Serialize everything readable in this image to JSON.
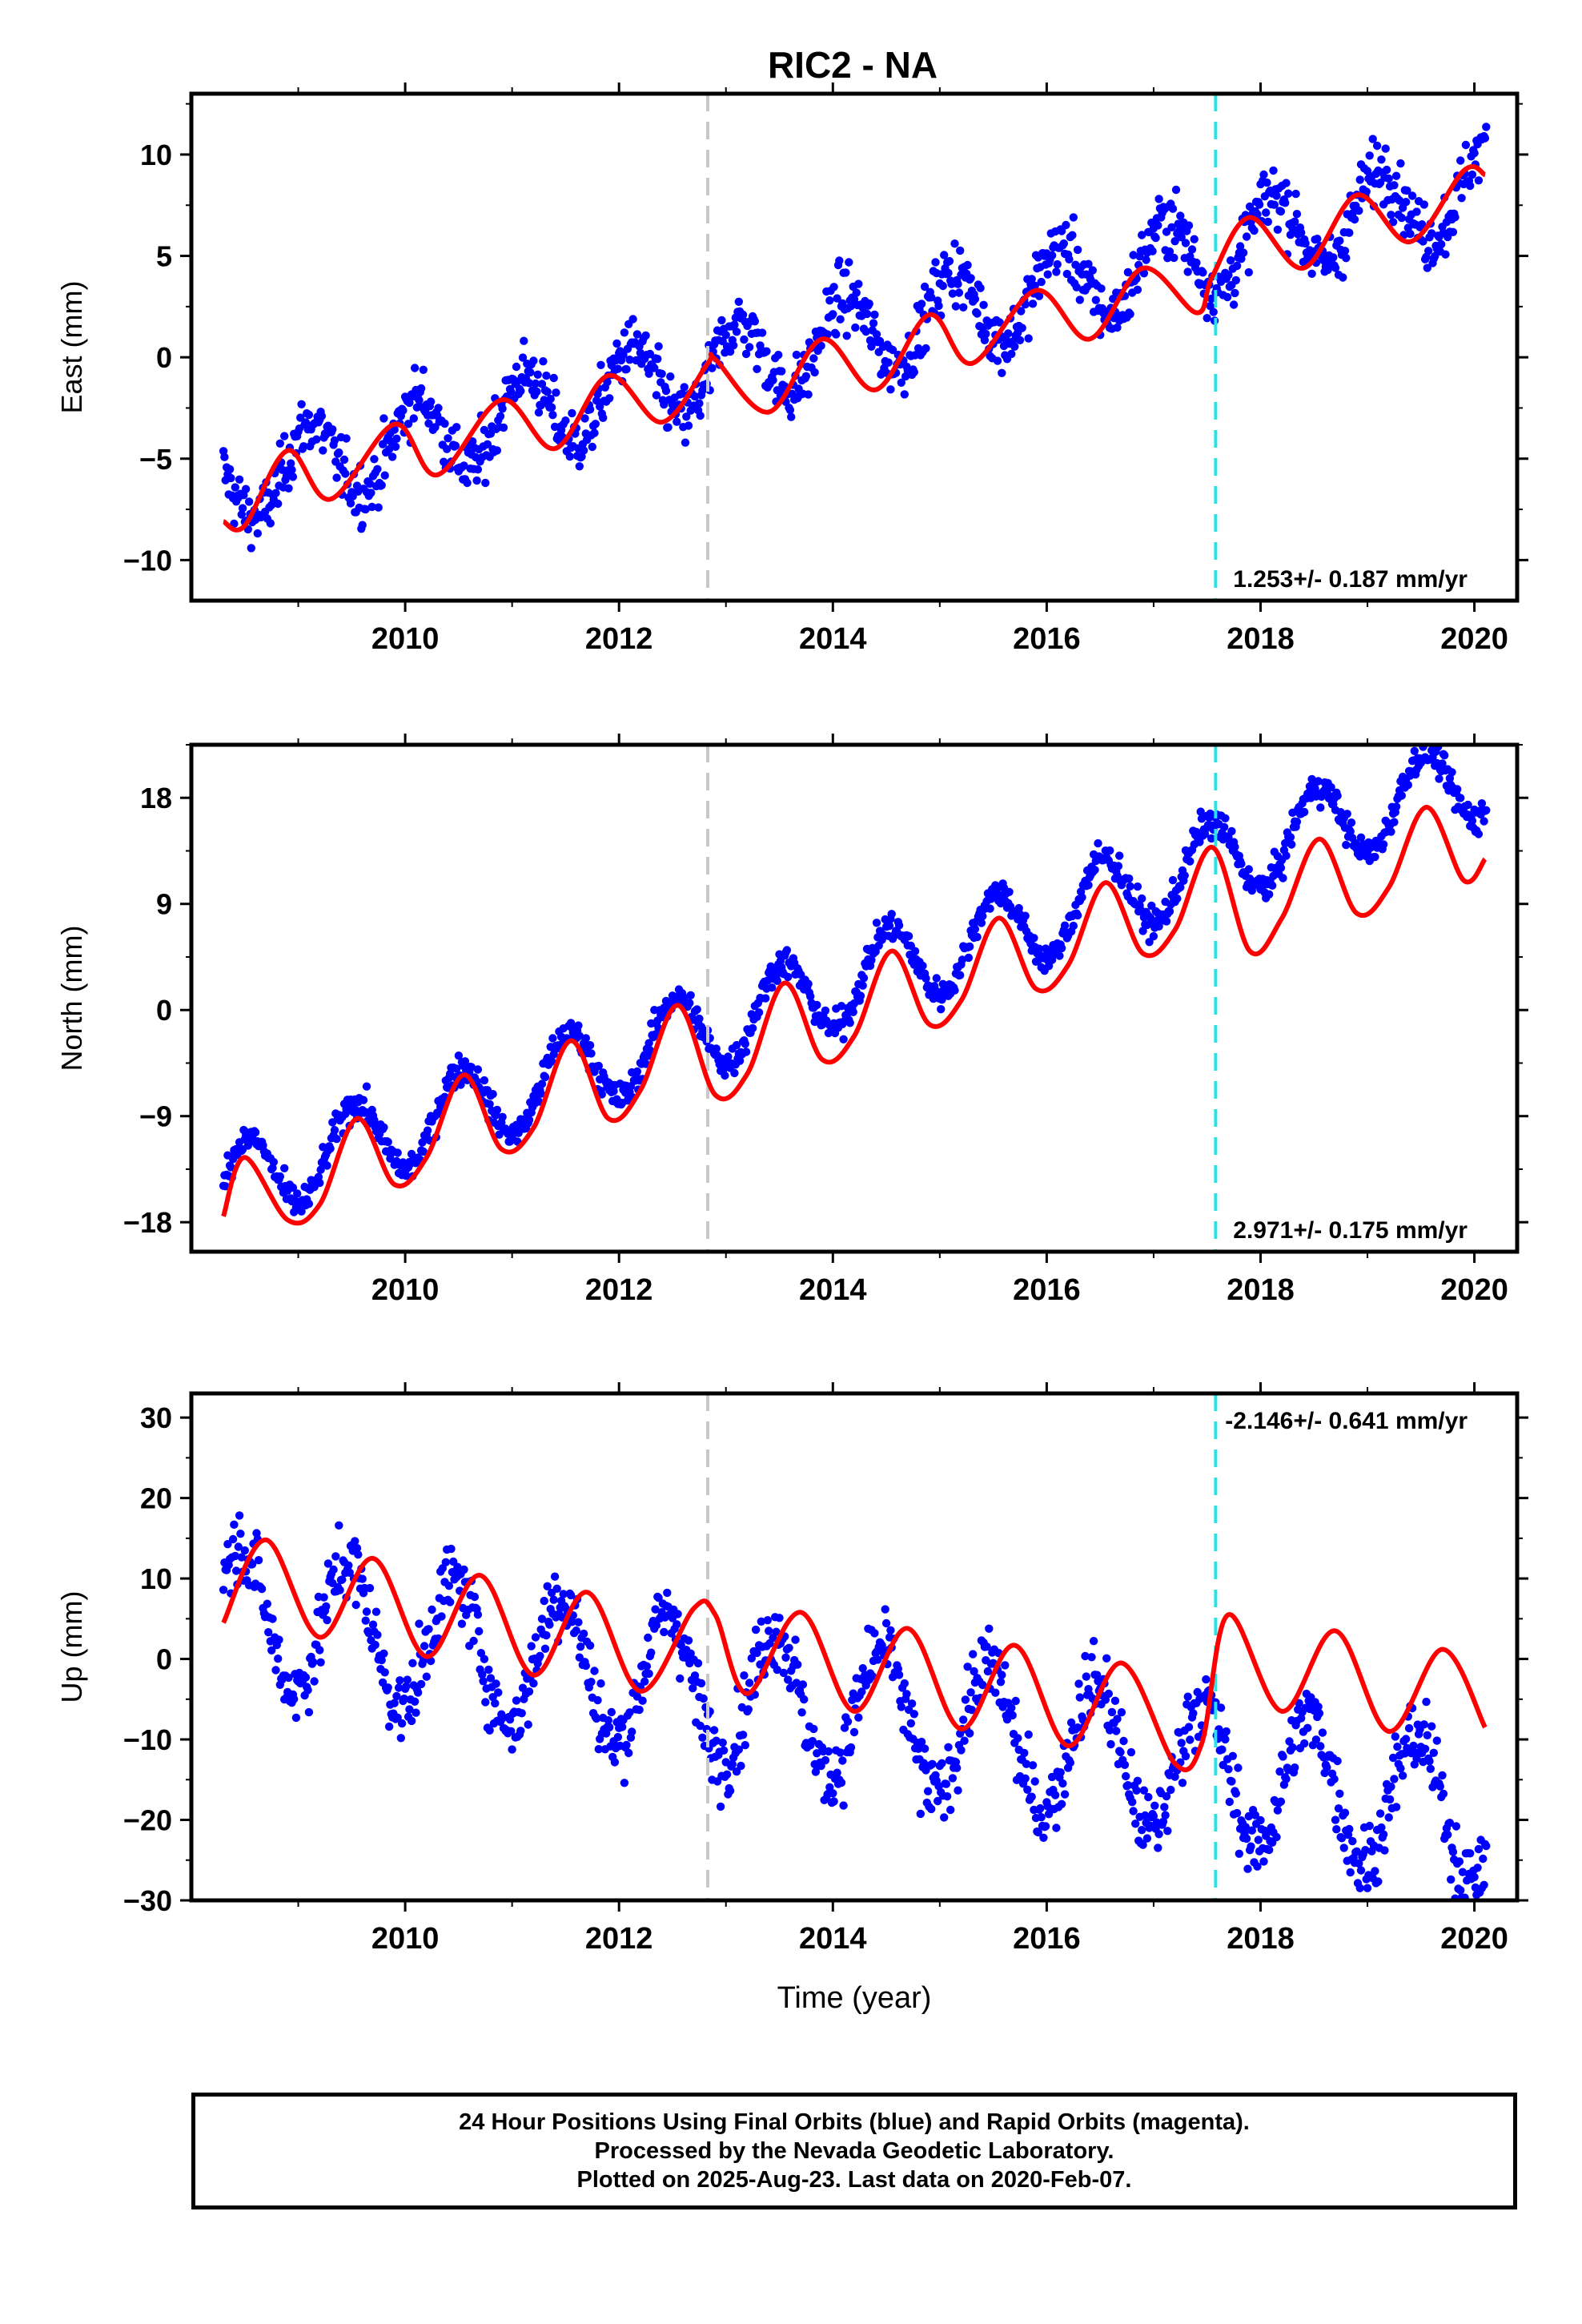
{
  "chart_data": {
    "type": "scatter",
    "title": "RIC2 - NA",
    "xlabel": "Time (year)",
    "x_ticks": [
      "2010",
      "2012",
      "2014",
      "2016",
      "2018",
      "2020"
    ],
    "xlim": [
      2008.0,
      2020.4
    ],
    "vertical_lines": [
      {
        "x": 2012.83,
        "color": "#c8c8c8",
        "style": "dashed"
      },
      {
        "x": 2017.58,
        "color": "#22e6e6",
        "style": "dashed"
      }
    ],
    "colors": {
      "points": "#0000ff",
      "fit": "#ff0000"
    },
    "point_data": {
      "start": 2008.3,
      "end": 2020.1,
      "step": 0.02
    },
    "panels": [
      {
        "name": "east",
        "ylabel": "East (mm)",
        "ylim": [
          -12,
          13
        ],
        "yticks": [
          -10,
          -5,
          0,
          5,
          10
        ],
        "ytick_labels": [
          "−10",
          "−5",
          "0",
          "5",
          "10"
        ],
        "rate_label": "1.253+/- 0.187 mm/yr",
        "rate_position": "bottom-right",
        "model": {
          "t0": 2008.3,
          "offset": -6.3,
          "slope": 1.253,
          "amplitude": 2.0,
          "phase": 2.8,
          "noise": 1.3
        },
        "fit": [
          [
            2008.3,
            -8.1
          ],
          [
            2008.5,
            -8.3
          ],
          [
            2008.9,
            -4.6
          ],
          [
            2009.3,
            -7.0
          ],
          [
            2009.9,
            -3.3
          ],
          [
            2010.3,
            -5.8
          ],
          [
            2010.9,
            -2.1
          ],
          [
            2011.4,
            -4.5
          ],
          [
            2011.9,
            -0.9
          ],
          [
            2012.4,
            -3.2
          ],
          [
            2012.83,
            -0.3
          ],
          [
            2012.9,
            -0.1
          ],
          [
            2013.4,
            -2.7
          ],
          [
            2013.9,
            0.9
          ],
          [
            2014.4,
            -1.6
          ],
          [
            2014.9,
            2.1
          ],
          [
            2015.3,
            -0.3
          ],
          [
            2015.9,
            3.3
          ],
          [
            2016.4,
            0.9
          ],
          [
            2016.9,
            4.4
          ],
          [
            2017.4,
            2.2
          ],
          [
            2017.55,
            4.0
          ],
          [
            2017.9,
            6.9
          ],
          [
            2018.4,
            4.4
          ],
          [
            2018.9,
            8.0
          ],
          [
            2019.4,
            5.7
          ],
          [
            2019.9,
            9.2
          ],
          [
            2020.1,
            9.0
          ]
        ]
      },
      {
        "name": "north",
        "ylabel": "North (mm)",
        "ylim": [
          -20.5,
          22.5
        ],
        "yticks": [
          -18,
          -9,
          0,
          9,
          18
        ],
        "ytick_labels": [
          "−18",
          "−9",
          "0",
          "9",
          "18"
        ],
        "rate_label": "2.971+/- 0.175 mm/yr",
        "rate_position": "bottom-right",
        "model": {
          "t0": 2008.3,
          "offset": -15.0,
          "slope": 2.971,
          "amplitude": 3.5,
          "phase": 0.2,
          "noise": 1.1
        },
        "fit": [
          [
            2008.3,
            -17.5
          ],
          [
            2008.5,
            -12.5
          ],
          [
            2008.9,
            -17.8
          ],
          [
            2009.2,
            -16.5
          ],
          [
            2009.55,
            -9.2
          ],
          [
            2009.9,
            -14.8
          ],
          [
            2010.2,
            -12.5
          ],
          [
            2010.55,
            -5.5
          ],
          [
            2010.9,
            -11.8
          ],
          [
            2011.2,
            -10.0
          ],
          [
            2011.55,
            -2.6
          ],
          [
            2011.9,
            -9.2
          ],
          [
            2012.2,
            -6.8
          ],
          [
            2012.55,
            0.4
          ],
          [
            2012.9,
            -7.2
          ],
          [
            2013.2,
            -5.4
          ],
          [
            2013.55,
            2.3
          ],
          [
            2013.9,
            -4.2
          ],
          [
            2014.2,
            -2.2
          ],
          [
            2014.55,
            5.0
          ],
          [
            2014.9,
            -1.2
          ],
          [
            2015.2,
            0.8
          ],
          [
            2015.55,
            7.8
          ],
          [
            2015.9,
            1.8
          ],
          [
            2016.2,
            3.8
          ],
          [
            2016.55,
            10.8
          ],
          [
            2016.9,
            4.8
          ],
          [
            2017.2,
            6.8
          ],
          [
            2017.55,
            13.8
          ],
          [
            2017.9,
            5.0
          ],
          [
            2018.2,
            7.8
          ],
          [
            2018.55,
            14.5
          ],
          [
            2018.9,
            8.2
          ],
          [
            2019.2,
            10.4
          ],
          [
            2019.55,
            17.2
          ],
          [
            2019.9,
            11.0
          ],
          [
            2020.1,
            12.8
          ]
        ]
      },
      {
        "name": "up",
        "ylabel": "Up (mm)",
        "ylim": [
          -30,
          33
        ],
        "yticks": [
          -30,
          -20,
          -10,
          0,
          10,
          20,
          30
        ],
        "ytick_labels": [
          "−30",
          "−20",
          "−10",
          "0",
          "10",
          "20",
          "30"
        ],
        "rate_label": "-2.146+/- 0.641 mm/yr",
        "rate_position": "top-right",
        "model": {
          "t0": 2008.3,
          "offset": 6.0,
          "slope": -2.146,
          "amplitude": 8.5,
          "phase": 0.6,
          "noise": 4.0
        },
        "fit": [
          [
            2008.3,
            4.5
          ],
          [
            2008.7,
            14.8
          ],
          [
            2009.2,
            2.7
          ],
          [
            2009.7,
            12.5
          ],
          [
            2010.2,
            0.3
          ],
          [
            2010.7,
            10.4
          ],
          [
            2011.2,
            -2.0
          ],
          [
            2011.7,
            8.3
          ],
          [
            2012.2,
            -4.0
          ],
          [
            2012.7,
            6.3
          ],
          [
            2012.9,
            5.5
          ],
          [
            2013.2,
            -4.3
          ],
          [
            2013.7,
            5.8
          ],
          [
            2014.2,
            -6.5
          ],
          [
            2014.7,
            3.8
          ],
          [
            2015.2,
            -8.7
          ],
          [
            2015.7,
            1.7
          ],
          [
            2016.2,
            -10.8
          ],
          [
            2016.7,
            -0.5
          ],
          [
            2017.2,
            -13.0
          ],
          [
            2017.45,
            -10.5
          ],
          [
            2017.7,
            5.5
          ],
          [
            2018.2,
            -6.5
          ],
          [
            2018.7,
            3.5
          ],
          [
            2019.2,
            -9.0
          ],
          [
            2019.7,
            1.2
          ],
          [
            2020.1,
            -8.5
          ]
        ]
      }
    ]
  },
  "footer": {
    "line1": "24 Hour Positions Using Final Orbits (blue) and Rapid Orbits (magenta).",
    "line2": "Processed by the Nevada Geodetic Laboratory.",
    "line3": "Plotted on 2025-Aug-23. Last data on 2020-Feb-07."
  }
}
